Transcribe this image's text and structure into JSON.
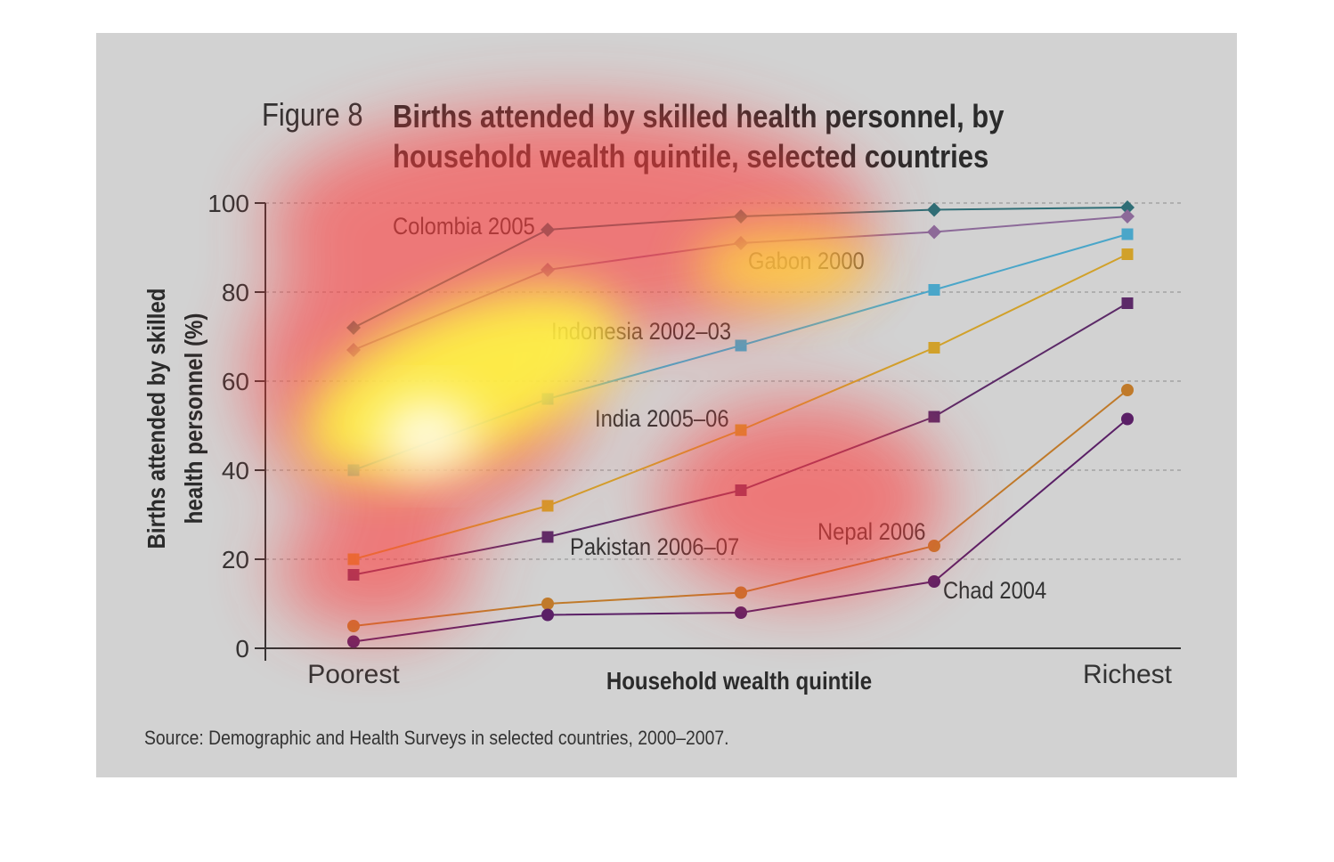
{
  "figure": {
    "label": "Figure 8",
    "title_line1": "Births attended by skilled health personnel, by",
    "title_line2": "household wealth quintile, selected countries",
    "source": "Source: Demographic and Health Surveys in selected countries, 2000–2007."
  },
  "chart_data": {
    "type": "line",
    "title": "Births attended by skilled health personnel, by household wealth quintile, selected countries",
    "xlabel": "Household wealth quintile",
    "ylabel_line1": "Births attended by skilled",
    "ylabel_line2": "health personnel (%)",
    "x_tick_labels": [
      "Poorest",
      "",
      "",
      "",
      "Richest"
    ],
    "y_ticks": [
      "0",
      "20",
      "40",
      "60",
      "80",
      "100"
    ],
    "ylim": [
      0,
      100
    ],
    "grid": true,
    "series": [
      {
        "name": "Colombia 2005",
        "color": "#2f6e76",
        "marker": "diamond",
        "values": [
          72,
          94,
          97,
          98.5,
          99
        ]
      },
      {
        "name": "Gabon 2000",
        "color": "#8c6a99",
        "marker": "diamond",
        "values": [
          67,
          85,
          91,
          93.5,
          97
        ]
      },
      {
        "name": "Indonesia 2002–03",
        "color": "#4aa6c9",
        "marker": "square",
        "values": [
          40,
          56,
          68,
          80.5,
          93
        ]
      },
      {
        "name": "India 2005–06",
        "color": "#d1a12a",
        "marker": "square",
        "values": [
          20,
          32,
          49,
          67.5,
          88.5
        ]
      },
      {
        "name": "Pakistan 2006–07",
        "color": "#5c2a68",
        "marker": "square",
        "values": [
          16.5,
          25,
          35.5,
          52,
          77.5
        ]
      },
      {
        "name": "Nepal 2006",
        "color": "#c07a2a",
        "marker": "circle",
        "values": [
          5,
          10,
          12.5,
          23,
          58
        ]
      },
      {
        "name": "Chad 2004",
        "color": "#5a1f66",
        "marker": "circle",
        "values": [
          1.5,
          7.5,
          8,
          15,
          51.5
        ]
      }
    ]
  },
  "heatmap_overlay": {
    "colors": [
      "#ffffff",
      "#ffff40",
      "#ff3c3c"
    ]
  }
}
